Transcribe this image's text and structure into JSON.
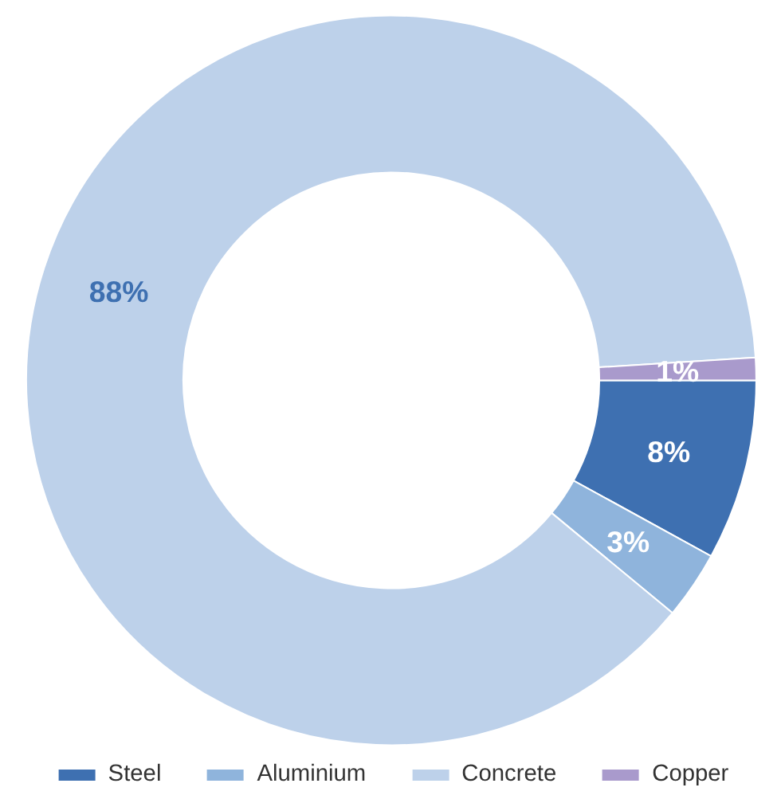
{
  "chart_data": {
    "type": "donut",
    "categories": [
      "Steel",
      "Aluminium",
      "Concrete",
      "Copper"
    ],
    "values": [
      8,
      3,
      88,
      1
    ],
    "colors": [
      "#3e70b1",
      "#8fb4dc",
      "#bdd1ea",
      "#a99acc"
    ],
    "value_labels": [
      "8%",
      "3%",
      "88%",
      "1%"
    ],
    "legend": "bottom"
  }
}
